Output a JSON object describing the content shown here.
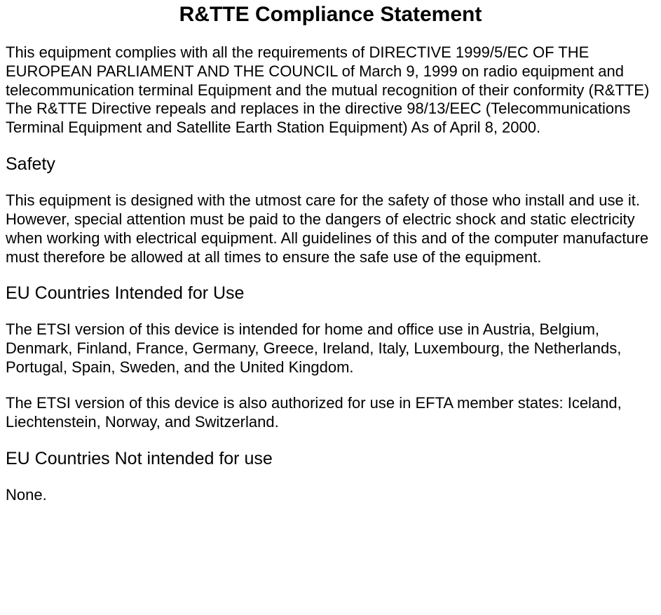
{
  "title": "R&TTE Compliance Statement",
  "p1": "This equipment complies with all the requirements of DIRECTIVE 1999/5/EC OF THE EUROPEAN PARLIAMENT AND THE COUNCIL of March 9, 1999 on radio equipment and telecommunication terminal Equipment and the mutual recognition of their conformity (R&TTE)\nThe R&TTE Directive repeals and replaces in the directive 98/13/EEC (Telecommunications Terminal Equipment and Satellite Earth Station Equipment) As of April 8, 2000.",
  "h_safety": "Safety",
  "p_safety": "This equipment is designed with the utmost care for the safety of those who install and use it. However, special attention must be paid to the dangers of electric shock and static electricity when working with electrical equipment. All guidelines of this and of the computer manufacture must therefore be allowed at all times to ensure the safe use of the equipment.",
  "h_eu_use": "EU Countries Intended for Use",
  "p_eu1": "The ETSI version of this device is intended for home and office use in Austria, Belgium, Denmark, Finland, France, Germany, Greece, Ireland, Italy, Luxembourg, the Netherlands, Portugal, Spain, Sweden, and the United Kingdom.",
  "p_eu2": "The ETSI version of this device is also authorized for use in EFTA member states: Iceland, Liechtenstein, Norway, and Switzerland.",
  "h_eu_not": "EU Countries Not intended for use",
  "p_none": "None.",
  "style": {
    "background_color": "#ffffff",
    "text_color": "#000000",
    "title_fontsize": 30,
    "title_fontweight": "bold",
    "subheading_fontsize": 25,
    "body_fontsize": 22,
    "line_height": 1.22,
    "font_family": "Arial"
  }
}
